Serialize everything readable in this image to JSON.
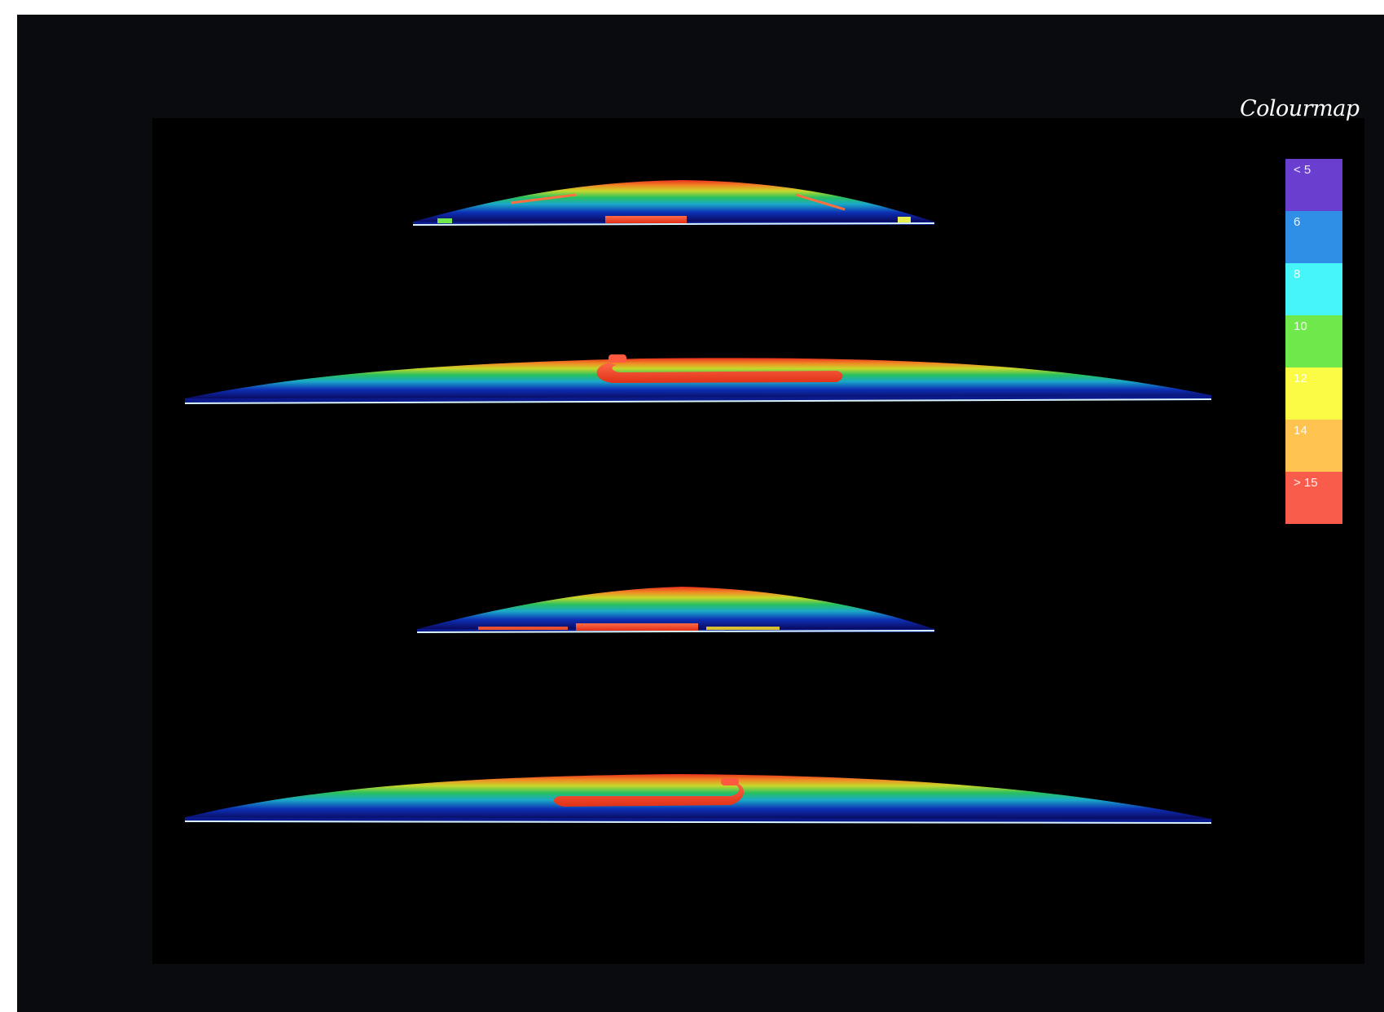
{
  "colourmap": {
    "title": "Colourmap",
    "bands": [
      {
        "label": "< 5",
        "color": "#6a3fd0"
      },
      {
        "label": "6",
        "color": "#2f8ee6"
      },
      {
        "label": "8",
        "color": "#46f5f7"
      },
      {
        "label": "10",
        "color": "#6ee84a"
      },
      {
        "label": "12",
        "color": "#fbfb46"
      },
      {
        "label": "14",
        "color": "#ffc34f"
      },
      {
        "label": "> 15",
        "color": "#fa5c4c"
      }
    ]
  }
}
